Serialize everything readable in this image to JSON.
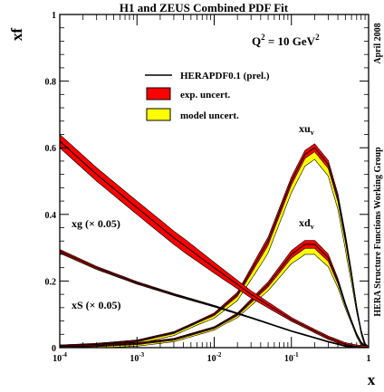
{
  "chart_data": {
    "type": "line",
    "title": "H1 and ZEUS Combined PDF Fit",
    "annotation_scale": "Q",
    "annotation_scale_sup": "2",
    "annotation_scale_value": " = 10 GeV",
    "annotation_scale_unit_sup": "2",
    "side_label_date": "April 2008",
    "side_label_group": "HERA Structure Functions Working Group",
    "xlabel": "x",
    "ylabel": "xf",
    "x_scale": "log",
    "xlim": [
      0.0001,
      1
    ],
    "ylim": [
      0,
      1
    ],
    "x_ticks": [
      {
        "base": "10",
        "exp": "-4",
        "value": 0.0001
      },
      {
        "base": "10",
        "exp": "-3",
        "value": 0.001
      },
      {
        "base": "10",
        "exp": "-2",
        "value": 0.01
      },
      {
        "base": "10",
        "exp": "-1",
        "value": 0.1
      },
      {
        "base": "1",
        "exp": "",
        "value": 1
      }
    ],
    "y_ticks": [
      "0",
      "0.2",
      "0.4",
      "0.6",
      "0.8",
      "1"
    ],
    "y_tick_values": [
      0,
      0.2,
      0.4,
      0.6,
      0.8,
      1
    ],
    "legend": [
      {
        "label": "HERAPDF0.1 (prel.)",
        "style": "line",
        "color": "#000000"
      },
      {
        "label": "exp. uncert.",
        "style": "box",
        "color": "#ff0000"
      },
      {
        "label": "model uncert.",
        "style": "box",
        "color": "#ffff00"
      }
    ],
    "curve_labels": {
      "xuv_main": "xu",
      "xuv_sub": "v",
      "xdv_main": "xd",
      "xdv_sub": "v",
      "xg": "xg (× 0.05)",
      "xS": "xS (× 0.05)"
    },
    "series": [
      {
        "name": "xu_v",
        "x": [
          0.0001,
          0.0003,
          0.001,
          0.003,
          0.01,
          0.02,
          0.05,
          0.1,
          0.15,
          0.2,
          0.3,
          0.4,
          0.5,
          0.6,
          0.7,
          0.8,
          0.9,
          1.0
        ],
        "y": [
          0.005,
          0.01,
          0.02,
          0.045,
          0.1,
          0.16,
          0.32,
          0.5,
          0.58,
          0.6,
          0.55,
          0.45,
          0.33,
          0.22,
          0.12,
          0.05,
          0.01,
          0.0
        ],
        "exp_uncert": 0.012,
        "model_uncert": 0.035
      },
      {
        "name": "xd_v",
        "x": [
          0.0001,
          0.0003,
          0.001,
          0.003,
          0.01,
          0.02,
          0.05,
          0.1,
          0.15,
          0.2,
          0.3,
          0.4,
          0.5,
          0.6,
          0.7,
          0.8,
          0.9,
          1.0
        ],
        "y": [
          0.003,
          0.006,
          0.012,
          0.025,
          0.06,
          0.1,
          0.19,
          0.28,
          0.31,
          0.31,
          0.27,
          0.2,
          0.13,
          0.08,
          0.04,
          0.015,
          0.003,
          0.0
        ],
        "exp_uncert": 0.012,
        "model_uncert": 0.03
      },
      {
        "name": "xg (× 0.05)",
        "x": [
          0.0001,
          0.0003,
          0.001,
          0.003,
          0.01,
          0.03,
          0.1,
          0.2,
          0.3,
          0.5,
          0.7,
          1.0
        ],
        "y": [
          0.62,
          0.52,
          0.42,
          0.33,
          0.24,
          0.16,
          0.085,
          0.05,
          0.03,
          0.01,
          0.003,
          0.0
        ],
        "exp_uncert": 0.02,
        "model_uncert": 0.02
      },
      {
        "name": "xS (× 0.05)",
        "x": [
          0.0001,
          0.0003,
          0.001,
          0.003,
          0.01,
          0.03,
          0.1,
          0.2,
          0.3,
          0.5,
          0.7,
          1.0
        ],
        "y": [
          0.29,
          0.24,
          0.195,
          0.16,
          0.125,
          0.09,
          0.05,
          0.03,
          0.018,
          0.005,
          0.001,
          0.0
        ],
        "exp_uncert": 0.005,
        "model_uncert": 0.007
      }
    ]
  }
}
